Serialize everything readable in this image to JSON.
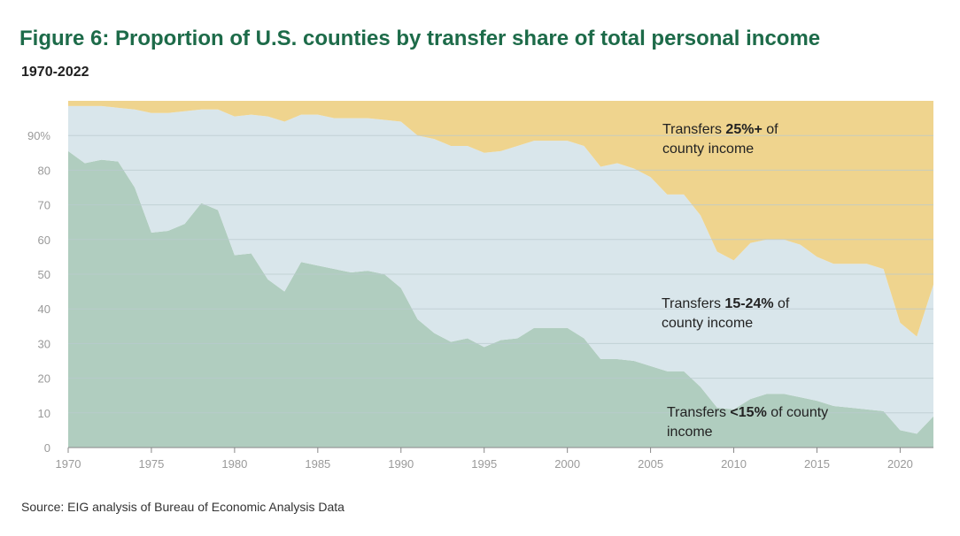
{
  "header": {
    "title": "Figure 6: Proportion of U.S. counties by transfer share of total personal income",
    "subtitle": "1970-2022"
  },
  "footer": {
    "source": "Source: EIG analysis of Bureau of Economic Analysis Data"
  },
  "chart_data": {
    "type": "area",
    "stacked": true,
    "title": "Figure 6: Proportion of U.S. counties by transfer share of total personal income",
    "subtitle": "1970-2022",
    "xlabel": "",
    "ylabel": "",
    "xlim": [
      1970,
      2022
    ],
    "ylim": [
      0,
      100
    ],
    "x_ticks": [
      1970,
      1975,
      1980,
      1985,
      1990,
      1995,
      2000,
      2005,
      2010,
      2015,
      2020
    ],
    "x_tick_labels": [
      "1970",
      "1975",
      "1980",
      "1985",
      "1990",
      "1995",
      "2000",
      "2005",
      "2010",
      "2015",
      "2020"
    ],
    "y_ticks": [
      0,
      10,
      20,
      30,
      40,
      50,
      60,
      70,
      80,
      90
    ],
    "y_tick_labels": [
      "0",
      "10",
      "20",
      "30",
      "40",
      "50",
      "60",
      "70",
      "80",
      "90%"
    ],
    "grid": true,
    "colors": {
      "lt15": "#b0cdbf",
      "mid": "#d9e6eb",
      "ge25": "#efd48e",
      "grid": "#b9c9cf",
      "axis": "#888888"
    },
    "x": [
      1970,
      1971,
      1972,
      1973,
      1974,
      1975,
      1976,
      1977,
      1978,
      1979,
      1980,
      1981,
      1982,
      1983,
      1984,
      1985,
      1986,
      1987,
      1988,
      1989,
      1990,
      1991,
      1992,
      1993,
      1994,
      1995,
      1996,
      1997,
      1998,
      1999,
      2000,
      2001,
      2002,
      2003,
      2004,
      2005,
      2006,
      2007,
      2008,
      2009,
      2010,
      2011,
      2012,
      2013,
      2014,
      2015,
      2016,
      2017,
      2018,
      2019,
      2020,
      2021,
      2022
    ],
    "series": [
      {
        "key": "lt15",
        "values": [
          85.5,
          82.0,
          83.0,
          82.5,
          75.0,
          62.0,
          62.5,
          64.5,
          70.5,
          68.5,
          55.5,
          56.0,
          48.5,
          45.0,
          53.5,
          52.5,
          51.5,
          50.5,
          51.0,
          50.0,
          46.0,
          37.0,
          33.0,
          30.5,
          31.5,
          29.0,
          31.0,
          31.5,
          34.5,
          34.5,
          34.5,
          31.5,
          25.5,
          25.5,
          25.0,
          23.5,
          22.0,
          22.0,
          17.5,
          11.5,
          11.0,
          14.0,
          15.5,
          15.5,
          14.5,
          13.5,
          12.0,
          11.5,
          11.0,
          10.5,
          5.0,
          4.0,
          9.0
        ]
      },
      {
        "key": "mid",
        "values": [
          13.0,
          16.5,
          15.5,
          15.5,
          22.5,
          34.5,
          34.0,
          32.5,
          27.0,
          29.0,
          40.0,
          40.0,
          47.0,
          49.0,
          42.5,
          43.5,
          43.5,
          44.5,
          44.0,
          44.5,
          48.0,
          53.0,
          56.0,
          56.5,
          55.5,
          56.0,
          54.5,
          55.5,
          54.0,
          54.0,
          54.0,
          55.5,
          55.5,
          56.5,
          55.5,
          54.5,
          51.0,
          51.0,
          49.5,
          45.0,
          43.0,
          45.0,
          44.5,
          44.5,
          44.0,
          41.5,
          41.0,
          41.5,
          42.0,
          41.0,
          31.0,
          28.0,
          38.0
        ]
      },
      {
        "key": "ge25",
        "name": "Transfers 25%+ of county income",
        "values": [
          1.5,
          1.5,
          1.5,
          2.0,
          2.5,
          3.5,
          3.5,
          3.0,
          2.5,
          2.5,
          4.5,
          4.0,
          4.5,
          6.0,
          4.0,
          4.0,
          5.0,
          5.0,
          5.0,
          5.5,
          6.0,
          10.0,
          11.0,
          13.0,
          13.0,
          15.0,
          14.5,
          13.0,
          11.5,
          11.5,
          11.5,
          13.0,
          19.0,
          18.0,
          19.5,
          22.0,
          27.0,
          27.0,
          33.0,
          43.5,
          46.0,
          41.0,
          40.0,
          40.0,
          41.5,
          45.0,
          47.0,
          47.0,
          47.0,
          48.5,
          64.0,
          68.0,
          53.0
        ]
      }
    ],
    "annotations": [
      {
        "key": "ge25",
        "lines": [
          [
            "Transfers ",
            "25%+",
            " of"
          ],
          [
            "county income"
          ]
        ]
      },
      {
        "key": "mid",
        "lines": [
          [
            "Transfers ",
            "15-24%",
            " of"
          ],
          [
            "county income"
          ]
        ]
      },
      {
        "key": "lt15",
        "lines": [
          [
            "Transfers ",
            "<15%",
            " of county"
          ],
          [
            "income"
          ]
        ]
      }
    ]
  }
}
